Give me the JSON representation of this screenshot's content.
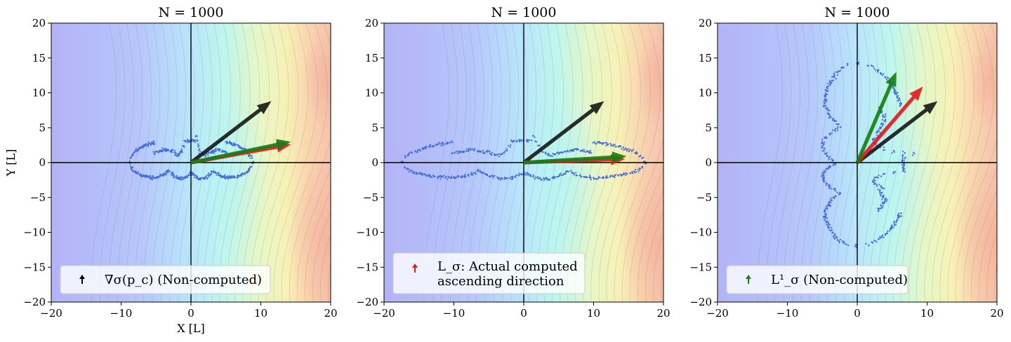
{
  "chart_data": [
    {
      "type": "scatter",
      "title": "N = 1000",
      "xlabel": "X [L]",
      "ylabel": "Y [L]",
      "xlim": [
        -20,
        20
      ],
      "ylim": [
        -20,
        20
      ],
      "xticks": [
        -20,
        -10,
        0,
        10,
        20
      ],
      "yticks": [
        -20,
        -15,
        -10,
        -5,
        0,
        5,
        10,
        15,
        20
      ],
      "grid": false,
      "background": "contour field (blue-cyan-yellow-orange)",
      "scatter_shape": "batman",
      "scatter_scale": [
        8.8,
        4.0
      ],
      "scatter_color": "#4169e1",
      "vectors": [
        {
          "name": "grad",
          "color": "#1a1a1a",
          "end": [
            11.5,
            8.8
          ]
        },
        {
          "name": "L_sigma",
          "color": "#e41a1c",
          "end": [
            14.3,
            2.6
          ]
        },
        {
          "name": "L1_sigma",
          "color": "#138013",
          "end": [
            14.3,
            3.0
          ]
        }
      ],
      "legend": {
        "placement": "lower-left",
        "marker_color": "#000000",
        "lines": [
          "∇σ(p_c) (Non-computed)"
        ]
      }
    },
    {
      "type": "scatter",
      "title": "N = 1000",
      "xlabel": "",
      "ylabel": "",
      "xlim": [
        -20,
        20
      ],
      "ylim": [
        -20,
        20
      ],
      "xticks": [
        -20,
        -10,
        0,
        10,
        20
      ],
      "yticks": [
        -20,
        -15,
        -10,
        -5,
        0,
        5,
        10,
        15,
        20
      ],
      "grid": false,
      "background": "contour field (blue-cyan-yellow-orange)",
      "scatter_shape": "batman",
      "scatter_scale": [
        17.3,
        4.0
      ],
      "scatter_color": "#4169e1",
      "vectors": [
        {
          "name": "grad",
          "color": "#1a1a1a",
          "end": [
            11.5,
            8.8
          ]
        },
        {
          "name": "L_sigma",
          "color": "#e41a1c",
          "end": [
            14.5,
            0.5
          ]
        },
        {
          "name": "L1_sigma",
          "color": "#138013",
          "end": [
            14.7,
            0.9
          ]
        }
      ],
      "legend": {
        "placement": "lower-left",
        "marker_color": "#e41a1c",
        "lines": [
          "L_σ: Actual computed",
          "ascending direction"
        ]
      }
    },
    {
      "type": "scatter",
      "title": "N = 1000",
      "xlabel": "",
      "ylabel": "",
      "xlim": [
        -20,
        20
      ],
      "ylim": [
        -20,
        20
      ],
      "xticks": [
        -20,
        -10,
        0,
        10,
        20
      ],
      "yticks": [
        -20,
        -15,
        -10,
        -5,
        0,
        5,
        10,
        15,
        20
      ],
      "grid": false,
      "background": "contour field (blue-cyan-yellow-orange)",
      "scatter_shape": "batman-rotated",
      "scatter_scale": [
        8.5,
        15.0
      ],
      "scatter_color": "#4169e1",
      "vectors": [
        {
          "name": "grad",
          "color": "#1a1a1a",
          "end": [
            11.5,
            8.8
          ]
        },
        {
          "name": "L_sigma",
          "color": "#e41a1c",
          "end": [
            9.4,
            10.9
          ]
        },
        {
          "name": "L1_sigma",
          "color": "#138013",
          "end": [
            5.6,
            13.0
          ]
        }
      ],
      "legend": {
        "placement": "lower-left",
        "marker_color": "#138013",
        "lines": [
          "L¹_σ (Non-computed)"
        ]
      }
    }
  ]
}
